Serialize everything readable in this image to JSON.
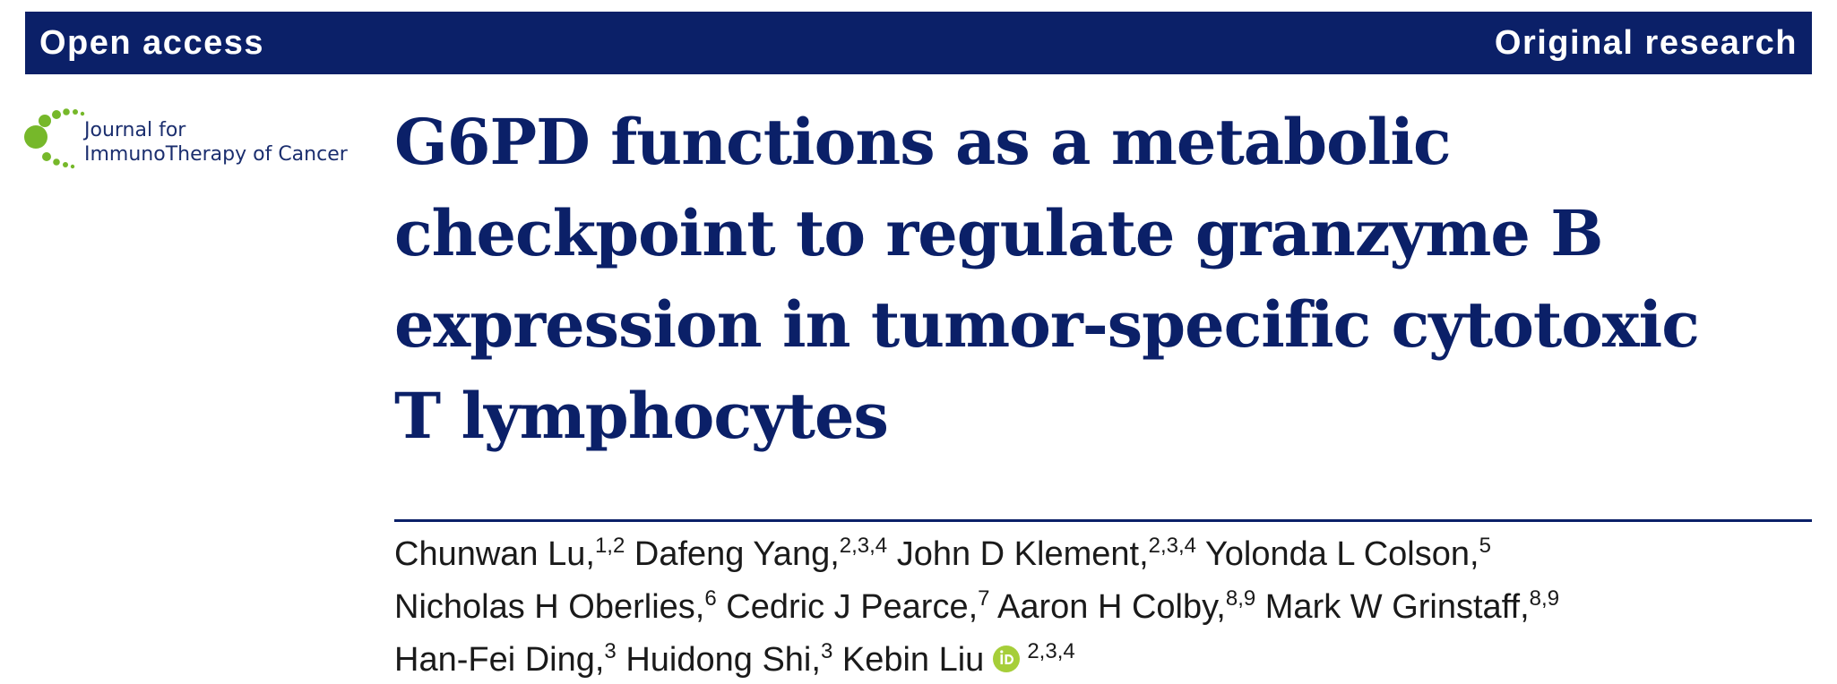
{
  "header": {
    "left_label": "Open access",
    "right_label": "Original research"
  },
  "journal": {
    "name_line1": "Journal for",
    "name_line2": "ImmunoTherapy of Cancer",
    "logo_color": "#76b82a"
  },
  "article": {
    "title_lines": [
      "G6PD functions as a metabolic",
      "checkpoint to regulate granzyme B",
      "expression in tumor-specific cytotoxic",
      "T lymphocytes"
    ]
  },
  "authors": [
    {
      "name": "Chunwan Lu,",
      "aff": "1,2"
    },
    {
      "name": "Dafeng Yang,",
      "aff": "2,3,4"
    },
    {
      "name": "John D Klement,",
      "aff": "2,3,4"
    },
    {
      "name": "Yolonda L Colson,",
      "aff": "5"
    },
    {
      "name": "Nicholas H Oberlies,",
      "aff": "6"
    },
    {
      "name": "Cedric J Pearce,",
      "aff": "7"
    },
    {
      "name": "Aaron H Colby,",
      "aff": "8,9"
    },
    {
      "name": "Mark W Grinstaff,",
      "aff": "8,9"
    },
    {
      "name": "Han-Fei Ding,",
      "aff": "3"
    },
    {
      "name": "Huidong Shi,",
      "aff": "3"
    },
    {
      "name": "Kebin Liu",
      "aff": "2,3,4",
      "orcid_icon": "orcid-icon"
    }
  ],
  "colors": {
    "brand_navy": "#0b2068",
    "orcid_green": "#a6ce39"
  }
}
